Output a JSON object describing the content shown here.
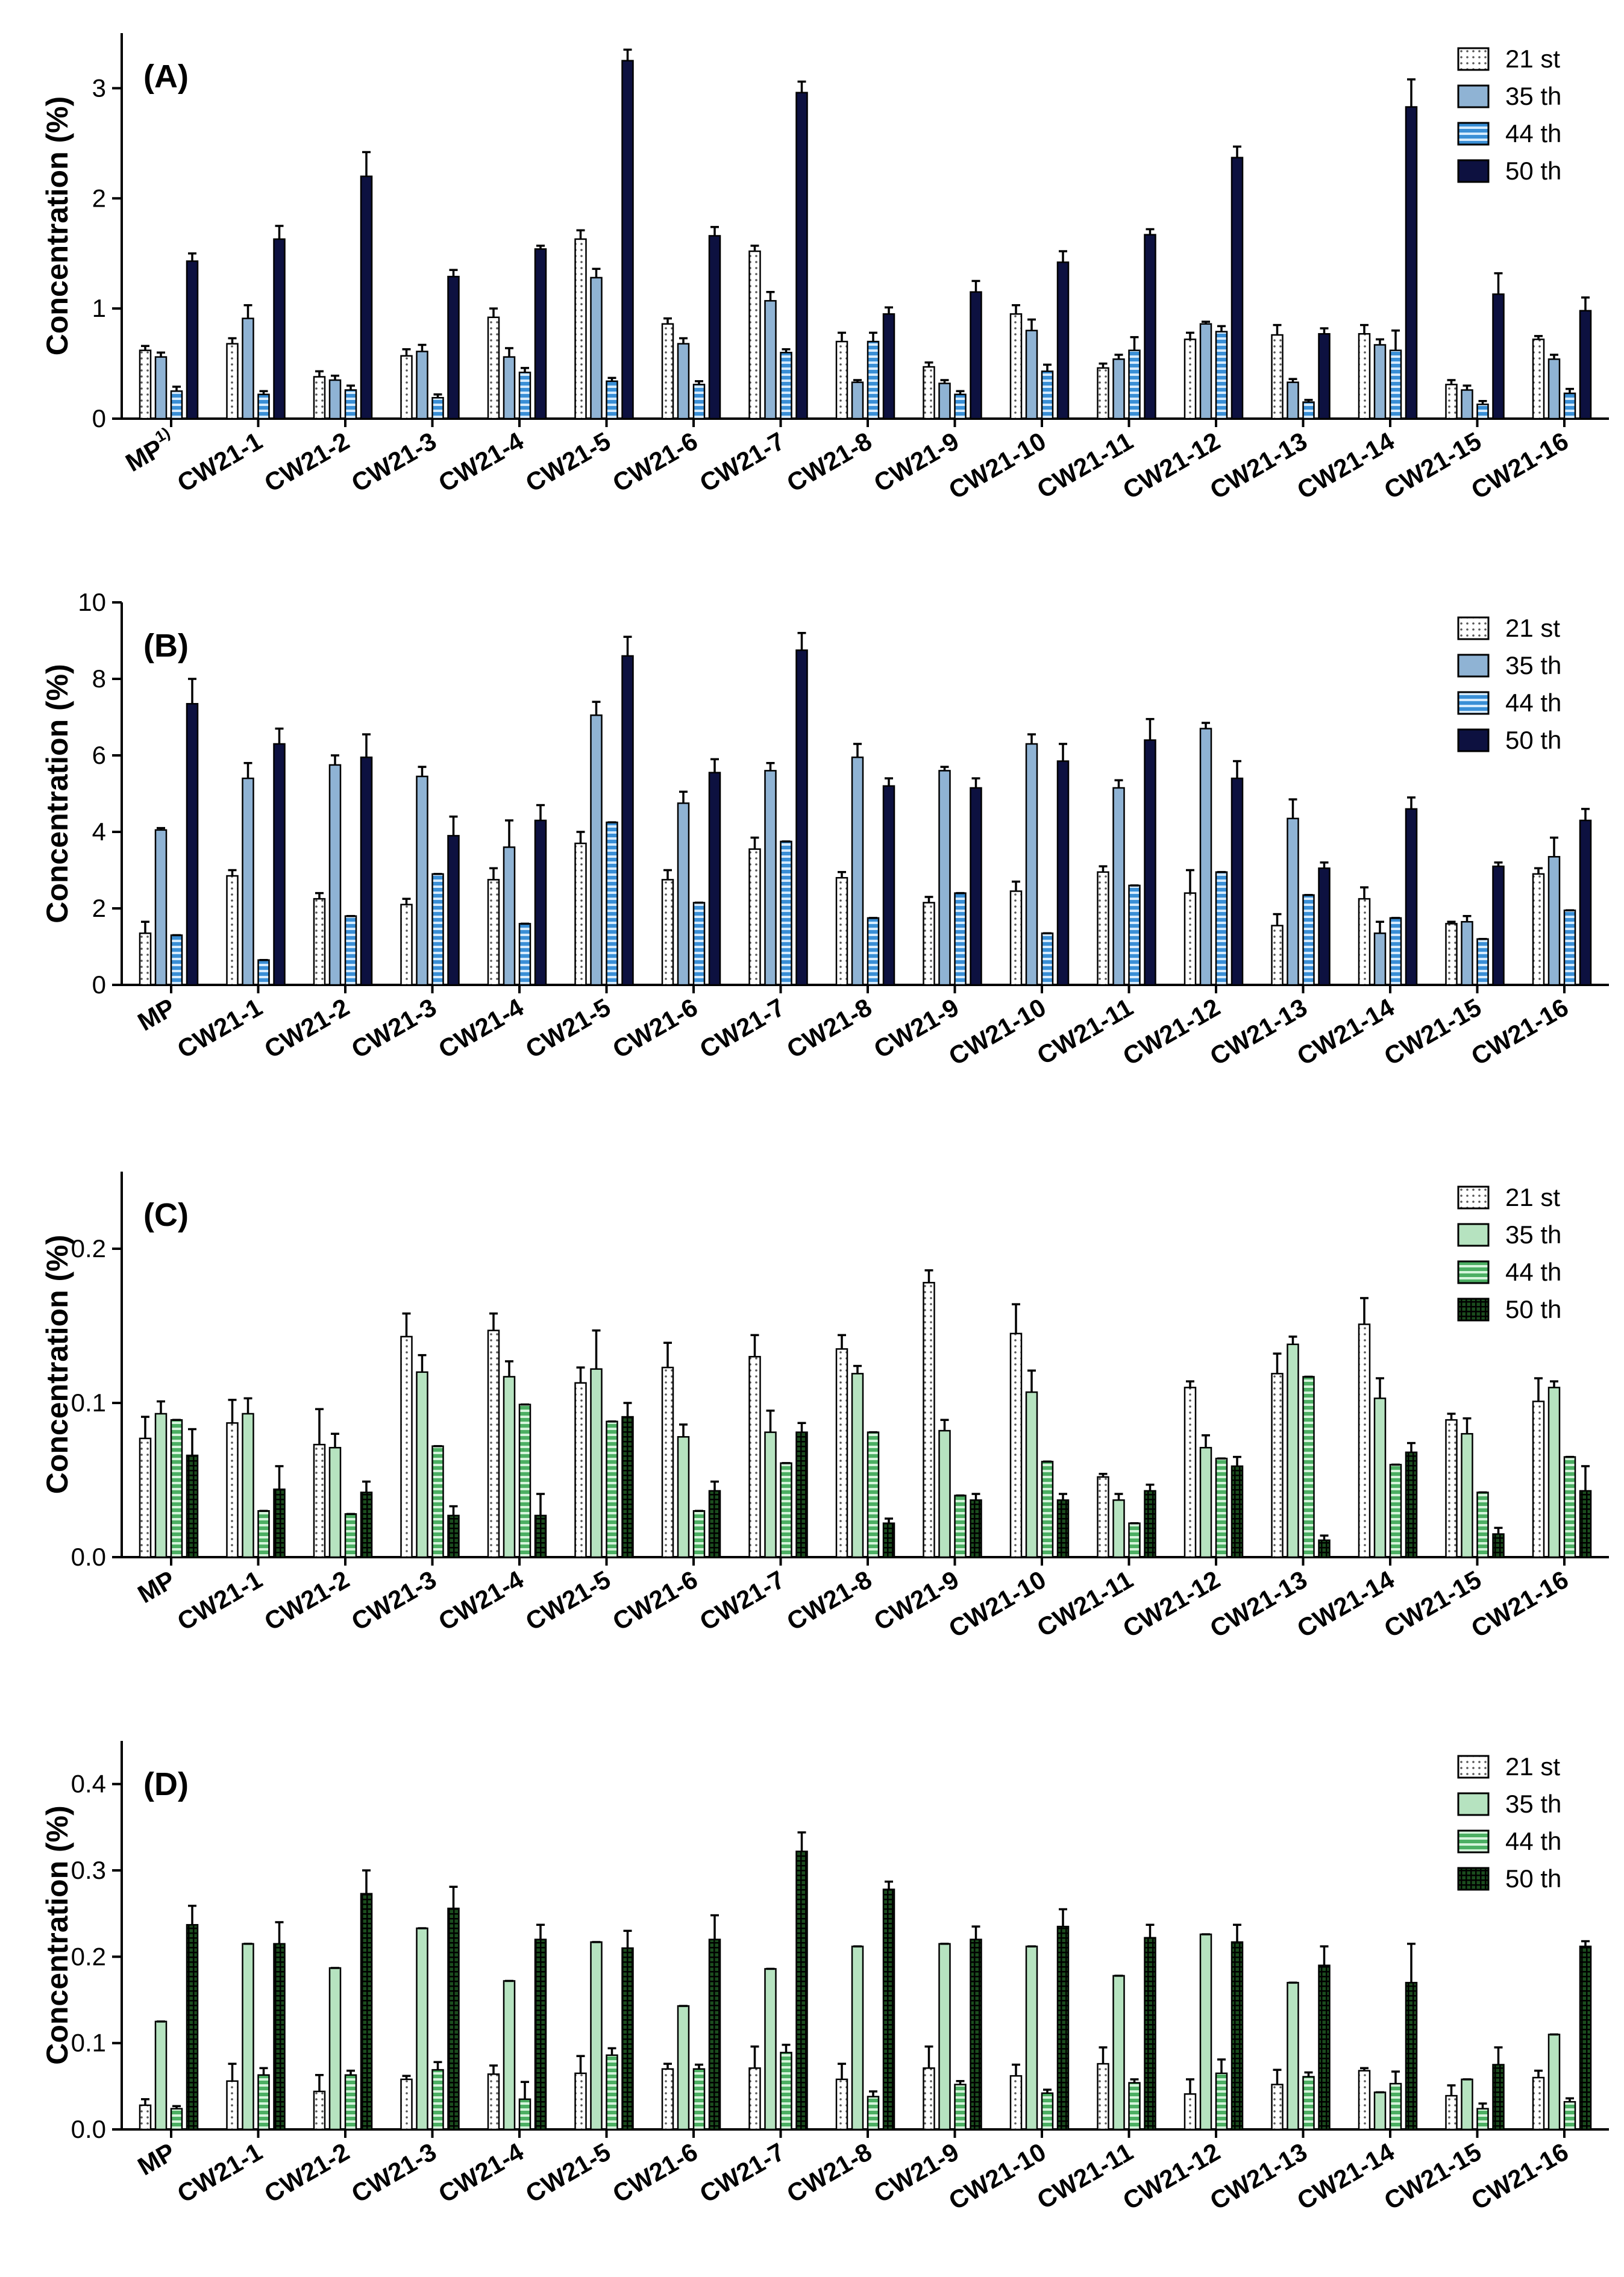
{
  "colors": {
    "white": "#ffffff",
    "lightBlue": "#8fb3d4",
    "midBlue": "#3a8fd6",
    "navy": "#0d1140",
    "lightGreen": "#b6e3c0",
    "midGreen": "#4caf63",
    "darkGreen": "#1b4d1e",
    "axis": "#000000"
  },
  "chart_data": [
    {
      "type": "bar",
      "panel": "(A)",
      "ylabel": "Concentration (%)",
      "ylim": [
        0,
        3.5
      ],
      "yticks": [
        0,
        1,
        2,
        3
      ],
      "ytick_labels": [
        "0",
        "1",
        "2",
        "3"
      ],
      "categories": [
        "MP",
        "CW21-1",
        "CW21-2",
        "CW21-3",
        "CW21-4",
        "CW21-5",
        "CW21-6",
        "CW21-7",
        "CW21-8",
        "CW21-9",
        "CW21-10",
        "CW21-11",
        "CW21-12",
        "CW21-13",
        "CW21-14",
        "CW21-15",
        "CW21-16"
      ],
      "first_label_superscript": "1)",
      "legend": [
        "21 st",
        "35 th",
        "44 th",
        "50 th"
      ],
      "series": [
        {
          "name": "21 st",
          "pattern": "dots",
          "colorKey": "white",
          "values": [
            0.62,
            0.68,
            0.38,
            0.57,
            0.92,
            1.63,
            0.86,
            1.52,
            0.7,
            0.47,
            0.95,
            0.46,
            0.72,
            0.76,
            0.77,
            0.31,
            0.72
          ],
          "errors": [
            0.04,
            0.05,
            0.05,
            0.06,
            0.08,
            0.08,
            0.05,
            0.05,
            0.08,
            0.04,
            0.08,
            0.04,
            0.06,
            0.09,
            0.08,
            0.04,
            0.03
          ]
        },
        {
          "name": "35 th",
          "pattern": "none",
          "colorKey": "lightBlue",
          "values": [
            0.56,
            0.91,
            0.35,
            0.61,
            0.56,
            1.28,
            0.68,
            1.07,
            0.33,
            0.32,
            0.8,
            0.54,
            0.86,
            0.33,
            0.67,
            0.26,
            0.54
          ],
          "errors": [
            0.04,
            0.12,
            0.04,
            0.06,
            0.08,
            0.08,
            0.05,
            0.08,
            0.02,
            0.03,
            0.1,
            0.04,
            0.02,
            0.03,
            0.05,
            0.04,
            0.04
          ]
        },
        {
          "name": "44 th",
          "pattern": "hlines",
          "colorKey": "midBlue",
          "values": [
            0.25,
            0.22,
            0.26,
            0.19,
            0.42,
            0.34,
            0.31,
            0.6,
            0.7,
            0.22,
            0.43,
            0.62,
            0.79,
            0.15,
            0.62,
            0.13,
            0.23
          ],
          "errors": [
            0.04,
            0.03,
            0.04,
            0.03,
            0.04,
            0.03,
            0.03,
            0.03,
            0.08,
            0.03,
            0.06,
            0.12,
            0.05,
            0.02,
            0.18,
            0.03,
            0.04
          ]
        },
        {
          "name": "50 th",
          "pattern": "none",
          "colorKey": "navy",
          "values": [
            1.43,
            1.63,
            2.2,
            1.29,
            1.54,
            3.25,
            1.66,
            2.96,
            0.95,
            1.15,
            1.42,
            1.67,
            2.37,
            0.77,
            2.83,
            1.13,
            0.98
          ],
          "errors": [
            0.07,
            0.12,
            0.22,
            0.06,
            0.03,
            0.1,
            0.08,
            0.1,
            0.06,
            0.1,
            0.1,
            0.05,
            0.1,
            0.05,
            0.25,
            0.19,
            0.12
          ]
        }
      ]
    },
    {
      "type": "bar",
      "panel": "(B)",
      "ylabel": "Concentration (%)",
      "ylim": [
        0,
        10
      ],
      "yticks": [
        0,
        2,
        4,
        6,
        8,
        10
      ],
      "ytick_labels": [
        "0",
        "2",
        "4",
        "6",
        "8",
        "10"
      ],
      "categories": [
        "MP",
        "CW21-1",
        "CW21-2",
        "CW21-3",
        "CW21-4",
        "CW21-5",
        "CW21-6",
        "CW21-7",
        "CW21-8",
        "CW21-9",
        "CW21-10",
        "CW21-11",
        "CW21-12",
        "CW21-13",
        "CW21-14",
        "CW21-15",
        "CW21-16"
      ],
      "legend": [
        "21 st",
        "35 th",
        "44 th",
        "50 th"
      ],
      "series": [
        {
          "name": "21 st",
          "pattern": "dots",
          "colorKey": "white",
          "values": [
            1.35,
            2.85,
            2.25,
            2.1,
            2.75,
            3.7,
            2.75,
            3.55,
            2.8,
            2.15,
            2.45,
            2.95,
            2.4,
            1.55,
            2.25,
            1.6,
            2.9
          ],
          "errors": [
            0.3,
            0.15,
            0.15,
            0.15,
            0.3,
            0.3,
            0.25,
            0.3,
            0.15,
            0.15,
            0.25,
            0.15,
            0.6,
            0.3,
            0.3,
            0.05,
            0.15
          ]
        },
        {
          "name": "35 th",
          "pattern": "none",
          "colorKey": "lightBlue",
          "values": [
            4.05,
            5.4,
            5.75,
            5.45,
            3.6,
            7.05,
            4.75,
            5.6,
            5.95,
            5.6,
            6.3,
            5.15,
            6.7,
            4.35,
            1.35,
            1.65,
            3.35
          ],
          "errors": [
            0.05,
            0.4,
            0.25,
            0.25,
            0.7,
            0.35,
            0.3,
            0.2,
            0.35,
            0.1,
            0.25,
            0.2,
            0.15,
            0.5,
            0.3,
            0.15,
            0.5
          ]
        },
        {
          "name": "44 th",
          "pattern": "hlines",
          "colorKey": "midBlue",
          "values": [
            1.3,
            0.65,
            1.8,
            2.9,
            1.6,
            4.25,
            2.15,
            3.75,
            1.75,
            2.4,
            1.35,
            2.6,
            2.95,
            2.35,
            1.75,
            1.2,
            1.95
          ],
          " errors": [
            0.4,
            0.25,
            0.25,
            0.2,
            0.3,
            0.4,
            0.25,
            0.2,
            0.35,
            0.5,
            0.4,
            0.3,
            0.35,
            0.35,
            0.25,
            0.25,
            0.15
          ]
        },
        {
          "name": "50 th",
          "pattern": "none",
          "colorKey": "navy",
          "values": [
            7.35,
            6.3,
            5.95,
            3.9,
            4.3,
            8.6,
            5.55,
            8.75,
            5.2,
            5.15,
            5.85,
            6.4,
            5.4,
            3.05,
            4.6,
            3.1,
            4.3
          ],
          "errors": [
            0.65,
            0.4,
            0.6,
            0.5,
            0.4,
            0.5,
            0.35,
            0.45,
            0.2,
            0.25,
            0.45,
            0.55,
            0.45,
            0.15,
            0.3,
            0.1,
            0.3
          ]
        }
      ]
    },
    {
      "type": "bar",
      "panel": "(C)",
      "ylabel": "Concentration (%)",
      "ylim": [
        0,
        0.25
      ],
      "yticks": [
        0,
        0.1,
        0.2
      ],
      "ytick_labels": [
        "0.0",
        "0.1",
        "0.2"
      ],
      "categories": [
        "MP",
        "CW21-1",
        "CW21-2",
        "CW21-3",
        "CW21-4",
        "CW21-5",
        "CW21-6",
        "CW21-7",
        "CW21-8",
        "CW21-9",
        "CW21-10",
        "CW21-11",
        "CW21-12",
        "CW21-13",
        "CW21-14",
        "CW21-15",
        "CW21-16"
      ],
      "legend": [
        "21 st",
        "35 th",
        "44 th",
        "50 th"
      ],
      "series": [
        {
          "name": "21 st",
          "pattern": "dots",
          "colorKey": "white",
          "values": [
            0.077,
            0.087,
            0.073,
            0.143,
            0.147,
            0.113,
            0.123,
            0.13,
            0.135,
            0.178,
            0.145,
            0.052,
            0.11,
            0.119,
            0.151,
            0.089,
            0.101
          ],
          "errors": [
            0.014,
            0.015,
            0.023,
            0.015,
            0.011,
            0.01,
            0.016,
            0.014,
            0.009,
            0.008,
            0.019,
            0.002,
            0.004,
            0.013,
            0.017,
            0.004,
            0.015
          ]
        },
        {
          "name": "35 th",
          "pattern": "none",
          "colorKey": "lightGreen",
          "values": [
            0.093,
            0.093,
            0.071,
            0.12,
            0.117,
            0.122,
            0.078,
            0.081,
            0.119,
            0.082,
            0.107,
            0.037,
            0.071,
            0.138,
            0.103,
            0.08,
            0.11
          ],
          "errors": [
            0.008,
            0.01,
            0.009,
            0.011,
            0.01,
            0.025,
            0.008,
            0.014,
            0.005,
            0.007,
            0.014,
            0.004,
            0.008,
            0.005,
            0.013,
            0.01,
            0.004
          ]
        },
        {
          "name": "44 th",
          "pattern": "hlines",
          "colorKey": "midGreen",
          "values": [
            0.089,
            0.03,
            0.028,
            0.072,
            0.099,
            0.088,
            0.03,
            0.061,
            0.081,
            0.04,
            0.062,
            0.022,
            0.064,
            0.117,
            0.06,
            0.042,
            0.065
          ],
          " errors": [
            0.008,
            0.005,
            0.012,
            0.009,
            0.011,
            0.007,
            0.004,
            0.014,
            0.009,
            0.012,
            0.007,
            0.007,
            0.013,
            0.005,
            0.013,
            0.002,
            0.015
          ]
        },
        {
          "name": "50 th",
          "pattern": "grid",
          "colorKey": "darkGreen",
          "values": [
            0.066,
            0.044,
            0.042,
            0.027,
            0.027,
            0.091,
            0.043,
            0.081,
            0.022,
            0.037,
            0.037,
            0.043,
            0.059,
            0.011,
            0.068,
            0.015,
            0.043
          ],
          "errors": [
            0.017,
            0.015,
            0.007,
            0.006,
            0.014,
            0.009,
            0.006,
            0.006,
            0.003,
            0.004,
            0.004,
            0.004,
            0.006,
            0.003,
            0.006,
            0.004,
            0.016
          ]
        }
      ]
    },
    {
      "type": "bar",
      "panel": "(D)",
      "ylabel": "Concentration (%)",
      "ylim": [
        0,
        0.45
      ],
      "yticks": [
        0,
        0.1,
        0.2,
        0.3,
        0.4
      ],
      "ytick_labels": [
        "0.0",
        "0.1",
        "0.2",
        "0.3",
        "0.4"
      ],
      "categories": [
        "MP",
        "CW21-1",
        "CW21-2",
        "CW21-3",
        "CW21-4",
        "CW21-5",
        "CW21-6",
        "CW21-7",
        "CW21-8",
        "CW21-9",
        "CW21-10",
        "CW21-11",
        "CW21-12",
        "CW21-13",
        "CW21-14",
        "CW21-15",
        "CW21-16"
      ],
      "legend": [
        "21 st",
        "35 th",
        "44 th",
        "50 th"
      ],
      "series": [
        {
          "name": "21 st",
          "pattern": "dots",
          "colorKey": "white",
          "values": [
            0.028,
            0.056,
            0.044,
            0.058,
            0.064,
            0.065,
            0.07,
            0.071,
            0.058,
            0.071,
            0.062,
            0.076,
            0.041,
            0.052,
            0.068,
            0.039,
            0.06
          ],
          "errors": [
            0.007,
            0.02,
            0.019,
            0.004,
            0.01,
            0.02,
            0.006,
            0.025,
            0.018,
            0.025,
            0.013,
            0.019,
            0.017,
            0.017,
            0.003,
            0.012,
            0.008
          ]
        },
        {
          "name": "35 th",
          "pattern": "none",
          "colorKey": "lightGreen",
          "values": [
            0.125,
            0.215,
            0.187,
            0.233,
            0.172,
            0.217,
            0.143,
            0.186,
            0.212,
            0.215,
            0.212,
            0.178,
            0.226,
            0.17,
            0.043,
            0.058,
            0.11
          ],
          " errors": [
            0.009,
            0.015,
            0.01,
            0.02,
            0.023,
            0.018,
            0.045,
            0.012,
            0.015,
            0.013,
            0.015,
            0.015,
            0.04,
            0.007,
            0.008,
            0.005,
            0.008
          ]
        },
        {
          "name": "44 th",
          "pattern": "hlines",
          "colorKey": "midGreen",
          "values": [
            0.024,
            0.063,
            0.063,
            0.069,
            0.035,
            0.086,
            0.07,
            0.089,
            0.038,
            0.052,
            0.042,
            0.054,
            0.065,
            0.061,
            0.053,
            0.024,
            0.032
          ],
          "errors": [
            0.003,
            0.008,
            0.005,
            0.009,
            0.02,
            0.008,
            0.005,
            0.009,
            0.006,
            0.004,
            0.004,
            0.004,
            0.016,
            0.005,
            0.014,
            0.006,
            0.004
          ]
        },
        {
          "name": "50 th",
          "pattern": "grid",
          "colorKey": "darkGreen",
          "values": [
            0.237,
            0.215,
            0.273,
            0.256,
            0.22,
            0.21,
            0.22,
            0.322,
            0.278,
            0.22,
            0.235,
            0.222,
            0.217,
            0.19,
            0.17,
            0.075,
            0.212
          ],
          "errors": [
            0.022,
            0.025,
            0.027,
            0.025,
            0.017,
            0.02,
            0.028,
            0.022,
            0.009,
            0.015,
            0.02,
            0.015,
            0.02,
            0.022,
            0.045,
            0.02,
            0.006
          ]
        }
      ]
    }
  ]
}
